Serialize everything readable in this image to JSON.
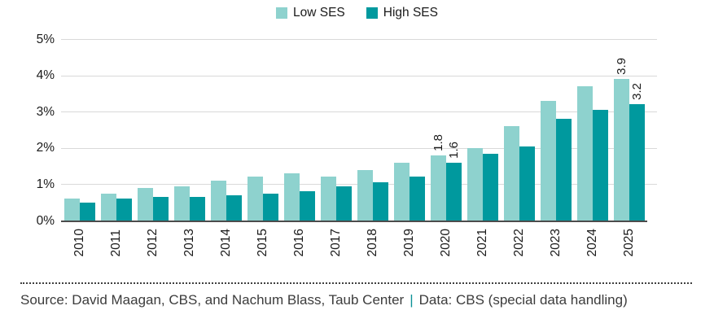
{
  "legend": {
    "items": [
      {
        "label": "Low SES",
        "color": "#8ED2CE"
      },
      {
        "label": "High SES",
        "color": "#00999E"
      }
    ]
  },
  "chart_data": {
    "type": "bar",
    "title": "",
    "categories": [
      "2010",
      "2011",
      "2012",
      "2013",
      "2014",
      "2015",
      "2016",
      "2017",
      "2018",
      "2019",
      "2020",
      "2021",
      "2022",
      "2023",
      "2024",
      "2025"
    ],
    "series": [
      {
        "name": "Low SES",
        "color": "#8ED2CE",
        "values": [
          0.6,
          0.75,
          0.9,
          0.95,
          1.1,
          1.2,
          1.3,
          1.2,
          1.4,
          1.6,
          1.8,
          2.0,
          2.6,
          3.3,
          3.7,
          3.9
        ],
        "point_labels": [
          "",
          "",
          "",
          "",
          "",
          "",
          "",
          "",
          "",
          "",
          "1.8",
          "",
          "",
          "",
          "",
          "3.9"
        ]
      },
      {
        "name": "High SES",
        "color": "#00999E",
        "values": [
          0.5,
          0.6,
          0.65,
          0.65,
          0.7,
          0.75,
          0.8,
          0.95,
          1.05,
          1.2,
          1.6,
          1.85,
          2.05,
          2.8,
          3.05,
          3.2
        ],
        "point_labels": [
          "",
          "",
          "",
          "",
          "",
          "",
          "",
          "",
          "",
          "",
          "1.6",
          "",
          "",
          "",
          "",
          "3.2"
        ]
      }
    ],
    "y_ticks": [
      {
        "label": "0%",
        "value": 0
      },
      {
        "label": "1%",
        "value": 1
      },
      {
        "label": "2%",
        "value": 2
      },
      {
        "label": "3%",
        "value": 3
      },
      {
        "label": "4%",
        "value": 4
      },
      {
        "label": "5%",
        "value": 5
      }
    ],
    "ylim": [
      0,
      5
    ],
    "unit": "%",
    "grid": true,
    "legend_position": "top-center",
    "colors": {
      "grid": "#D9D9D9",
      "axis": "#4C4C4C"
    }
  },
  "footer": {
    "source_text": "Source: David Maagan, CBS, and Nachum Blass, Taub Center",
    "separator": "|",
    "data_text": "Data: CBS (special data handling)"
  }
}
